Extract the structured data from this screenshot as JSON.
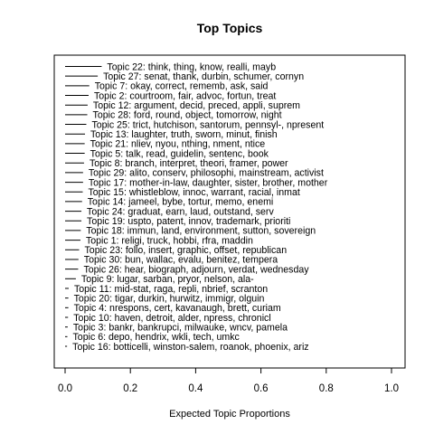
{
  "chart_data": {
    "type": "bar",
    "title": "Top Topics",
    "xlabel": "Expected Topic Proportions",
    "xlim": [
      0,
      1
    ],
    "xticks": [
      "0.0",
      "0.2",
      "0.4",
      "0.6",
      "0.8",
      "1.0"
    ],
    "bars": [
      {
        "label": "Topic 22: think, thing, know, realli, mayb",
        "value": 0.112
      },
      {
        "label": "Topic 27: senat, thank, durbin, schumer, cornyn",
        "value": 0.1
      },
      {
        "label": "Topic 7: okay, correct, rememb, ask, said",
        "value": 0.074
      },
      {
        "label": "Topic 2: courtroom, fair, advoc, fortun, treat",
        "value": 0.072
      },
      {
        "label": "Topic 12: argument, decid, preced, appli, suprem",
        "value": 0.069
      },
      {
        "label": "Topic 28: ford, round, object, tomorrow, night",
        "value": 0.068
      },
      {
        "label": "Topic 25: trict, hutchison, santorum, pennsyl-, npresent",
        "value": 0.065
      },
      {
        "label": "Topic 13: laughter, truth, sworn, minut, finish",
        "value": 0.061
      },
      {
        "label": "Topic 21: nliev, nyou, nthing, nment, ntice",
        "value": 0.06
      },
      {
        "label": "Topic 5: talk, read, guidelin, sentenc, book",
        "value": 0.06
      },
      {
        "label": "Topic 8: branch, interpret, theori, framer, power",
        "value": 0.058
      },
      {
        "label": "Topic 29: alito, conserv, philosophi, mainstream, activist",
        "value": 0.055
      },
      {
        "label": "Topic 17: mother-in-law, daughter, sister, brother, mother",
        "value": 0.055
      },
      {
        "label": "Topic 15: whistleblow, innoc, warrant, racial, inmat",
        "value": 0.054
      },
      {
        "label": "Topic 14: jameel, bybe, tortur, memo, enemi",
        "value": 0.052
      },
      {
        "label": "Topic 24: graduat, earn, laud, outstand, serv",
        "value": 0.05
      },
      {
        "label": "Topic 19: uspto, patent, innov, trademark, prioriti",
        "value": 0.05
      },
      {
        "label": "Topic 18: immun, land, environment, sutton, sovereign",
        "value": 0.048
      },
      {
        "label": "Topic 1: religi, truck, hobbi, rfra, maddin",
        "value": 0.047
      },
      {
        "label": "Topic 23: follo, insert, graphic, offset, republican",
        "value": 0.043
      },
      {
        "label": "Topic 30: bun, wallac, evalu, benitez, tempera",
        "value": 0.041
      },
      {
        "label": "Topic 26: hear, biograph, adjourn, verdat, wednesday",
        "value": 0.04
      },
      {
        "label": "Topic 9: lugar, sarban, pryor, nelson, ala-",
        "value": 0.033
      },
      {
        "label": "Topic 11: mid-stat, raga, repli, nbrief, scranton",
        "value": 0.011
      },
      {
        "label": "Topic 20: tigar, durkin, hurwitz, immigr, olguin",
        "value": 0.01
      },
      {
        "label": "Topic 4: nrespons, cert, kavanaugh, brett, curiam",
        "value": 0.01
      },
      {
        "label": "Topic 10: haven, detroit, alder, npress, chronicl",
        "value": 0.009
      },
      {
        "label": "Topic 3: bankr, bankrupci, milwauke, wncv, pamela",
        "value": 0.008
      },
      {
        "label": "Topic 6: depo, hendrix, wkli, tech, umkc",
        "value": 0.007
      },
      {
        "label": "Topic 16: botticelli, winston-salem, roanok, phoenix, ariz",
        "value": 0.006
      }
    ]
  }
}
